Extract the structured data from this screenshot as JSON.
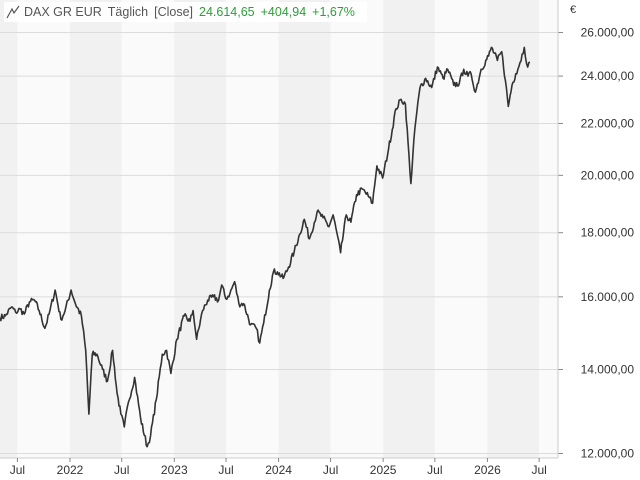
{
  "legend": {
    "instrument": "DAX GR EUR",
    "interval": "Täglich",
    "price_type": "[Close]",
    "last": "24.614,65",
    "change": "+404,94",
    "change_pct": "+1,67%",
    "positive_color": "#2e9d3a",
    "symbol_icon": "line-chart-icon"
  },
  "currency": "€",
  "chart_data": {
    "type": "line",
    "title": "",
    "xlabel": "",
    "ylabel": "",
    "y_scale": "log",
    "ylim": [
      11900,
      27600
    ],
    "xlim": [
      "2021-05-01",
      "2026-09-05"
    ],
    "y_ticks": [
      {
        "value": 12000,
        "label": "12.000,00"
      },
      {
        "value": 14000,
        "label": "14.000,00"
      },
      {
        "value": 16000,
        "label": "16.000,00"
      },
      {
        "value": 18000,
        "label": "18.000,00"
      },
      {
        "value": 20000,
        "label": "20.000,00"
      },
      {
        "value": 22000,
        "label": "22.000,00"
      },
      {
        "value": 24000,
        "label": "24.000,00"
      },
      {
        "value": 26000,
        "label": "26.000,00"
      }
    ],
    "x_ticks": [
      {
        "date": "2021-07-01",
        "label": "Jul"
      },
      {
        "date": "2022-01-01",
        "label": "2022"
      },
      {
        "date": "2022-07-01",
        "label": "Jul"
      },
      {
        "date": "2023-01-01",
        "label": "2023"
      },
      {
        "date": "2023-07-01",
        "label": "Jul"
      },
      {
        "date": "2024-01-01",
        "label": "2024"
      },
      {
        "date": "2024-07-01",
        "label": "Jul"
      },
      {
        "date": "2025-01-01",
        "label": "2025"
      },
      {
        "date": "2025-07-01",
        "label": "Jul"
      },
      {
        "date": "2026-01-01",
        "label": "2026"
      },
      {
        "date": "2026-07-01",
        "label": "Jul"
      }
    ],
    "grid": true,
    "series": [
      {
        "color": "#333333",
        "points": [
          [
            "2021-05-01",
            15400
          ],
          [
            "2021-05-20",
            15450
          ],
          [
            "2021-06-10",
            15700
          ],
          [
            "2021-06-25",
            15550
          ],
          [
            "2021-07-10",
            15650
          ],
          [
            "2021-07-25",
            15500
          ],
          [
            "2021-08-12",
            15850
          ],
          [
            "2021-08-30",
            15900
          ],
          [
            "2021-09-15",
            15600
          ],
          [
            "2021-10-05",
            15100
          ],
          [
            "2021-10-20",
            15500
          ],
          [
            "2021-11-10",
            16200
          ],
          [
            "2021-11-30",
            15350
          ],
          [
            "2021-12-15",
            15600
          ],
          [
            "2022-01-05",
            16200
          ],
          [
            "2022-01-20",
            15800
          ],
          [
            "2022-02-10",
            15450
          ],
          [
            "2022-02-25",
            14500
          ],
          [
            "2022-03-08",
            12900
          ],
          [
            "2022-03-20",
            14400
          ],
          [
            "2022-04-05",
            14400
          ],
          [
            "2022-04-25",
            14000
          ],
          [
            "2022-05-12",
            13700
          ],
          [
            "2022-05-30",
            14500
          ],
          [
            "2022-06-15",
            13400
          ],
          [
            "2022-06-28",
            12900
          ],
          [
            "2022-07-10",
            12600
          ],
          [
            "2022-07-25",
            13200
          ],
          [
            "2022-08-15",
            13800
          ],
          [
            "2022-09-05",
            12800
          ],
          [
            "2022-09-28",
            12150
          ],
          [
            "2022-10-10",
            12400
          ],
          [
            "2022-10-30",
            13250
          ],
          [
            "2022-11-20",
            14400
          ],
          [
            "2022-12-05",
            14500
          ],
          [
            "2022-12-20",
            13900
          ],
          [
            "2023-01-10",
            14800
          ],
          [
            "2023-02-05",
            15450
          ],
          [
            "2023-02-25",
            15300
          ],
          [
            "2023-03-08",
            15600
          ],
          [
            "2023-03-20",
            14800
          ],
          [
            "2023-04-10",
            15600
          ],
          [
            "2023-04-28",
            15900
          ],
          [
            "2023-05-18",
            16000
          ],
          [
            "2023-06-05",
            15900
          ],
          [
            "2023-06-16",
            16350
          ],
          [
            "2023-06-30",
            15950
          ],
          [
            "2023-07-15",
            16100
          ],
          [
            "2023-07-31",
            16450
          ],
          [
            "2023-08-15",
            15800
          ],
          [
            "2023-09-01",
            15800
          ],
          [
            "2023-09-25",
            15200
          ],
          [
            "2023-10-15",
            15100
          ],
          [
            "2023-10-27",
            14700
          ],
          [
            "2023-11-10",
            15250
          ],
          [
            "2023-11-30",
            16200
          ],
          [
            "2023-12-14",
            16750
          ],
          [
            "2023-12-28",
            16750
          ],
          [
            "2024-01-17",
            16550
          ],
          [
            "2024-02-05",
            16900
          ],
          [
            "2024-02-25",
            17400
          ],
          [
            "2024-03-15",
            17950
          ],
          [
            "2024-03-31",
            18450
          ],
          [
            "2024-04-18",
            17800
          ],
          [
            "2024-05-15",
            18700
          ],
          [
            "2024-06-05",
            18500
          ],
          [
            "2024-06-25",
            18200
          ],
          [
            "2024-07-10",
            18600
          ],
          [
            "2024-08-05",
            17350
          ],
          [
            "2024-08-25",
            18600
          ],
          [
            "2024-09-10",
            18350
          ],
          [
            "2024-09-30",
            19300
          ],
          [
            "2024-10-20",
            19500
          ],
          [
            "2024-11-10",
            19250
          ],
          [
            "2024-11-25",
            19000
          ],
          [
            "2024-12-10",
            20350
          ],
          [
            "2024-12-30",
            19900
          ],
          [
            "2025-01-20",
            21000
          ],
          [
            "2025-02-15",
            22600
          ],
          [
            "2025-03-05",
            23000
          ],
          [
            "2025-03-20",
            22800
          ],
          [
            "2025-04-08",
            19700
          ],
          [
            "2025-04-22",
            21800
          ],
          [
            "2025-05-10",
            23500
          ],
          [
            "2025-05-30",
            23900
          ],
          [
            "2025-06-20",
            23500
          ],
          [
            "2025-07-10",
            24400
          ],
          [
            "2025-07-30",
            23900
          ],
          [
            "2025-08-15",
            24300
          ],
          [
            "2025-09-05",
            23600
          ],
          [
            "2025-09-25",
            23700
          ],
          [
            "2025-10-10",
            24300
          ],
          [
            "2025-10-25",
            24000
          ],
          [
            "2025-11-05",
            24100
          ],
          [
            "2025-11-20",
            23300
          ],
          [
            "2025-12-10",
            24300
          ],
          [
            "2026-01-05",
            24900
          ],
          [
            "2026-01-15",
            25300
          ],
          [
            "2026-02-05",
            24700
          ],
          [
            "2026-02-20",
            25100
          ],
          [
            "2026-03-05",
            23800
          ],
          [
            "2026-03-15",
            22700
          ],
          [
            "2026-03-28",
            23600
          ],
          [
            "2026-04-10",
            24100
          ],
          [
            "2026-04-25",
            24600
          ],
          [
            "2026-05-10",
            25300
          ],
          [
            "2026-05-22",
            24400
          ],
          [
            "2026-05-30",
            24614.65
          ]
        ]
      }
    ]
  }
}
